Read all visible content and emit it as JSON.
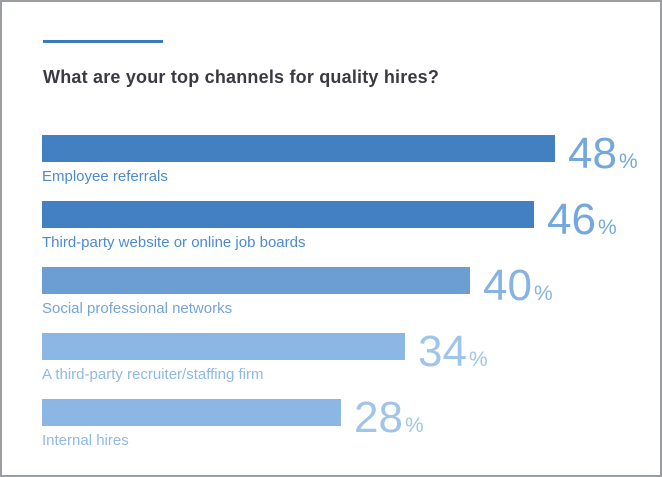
{
  "frame": {
    "background": "#ffffff",
    "border_color": "#9a9da1"
  },
  "accent_line_color": "#3a7abd",
  "title": "What are your top channels for quality hires?",
  "chart_data": {
    "type": "bar",
    "orientation": "horizontal",
    "title": "What are your top channels for quality hires?",
    "categories": [
      "Employee referrals",
      "Third-party website or online job boards",
      "Social professional networks",
      "A third-party recruiter/staffing firm",
      "Internal hires"
    ],
    "values": [
      48,
      46,
      40,
      34,
      28
    ],
    "unit": "%",
    "xlim": [
      0,
      48
    ],
    "grid": false,
    "legend": false,
    "bar_colors": [
      "#4380c1",
      "#4380c1",
      "#6c9dd3",
      "#8cb7e4",
      "#8cb7e4"
    ],
    "label_colors": [
      "#4c8bd0",
      "#4c8bd0",
      "#74a4d8",
      "#8fb9e5",
      "#8fb9e5"
    ],
    "value_colors": [
      "#74a7dd",
      "#74a7dd",
      "#88b2e1",
      "#a0c4ea",
      "#a0c4ea"
    ]
  }
}
